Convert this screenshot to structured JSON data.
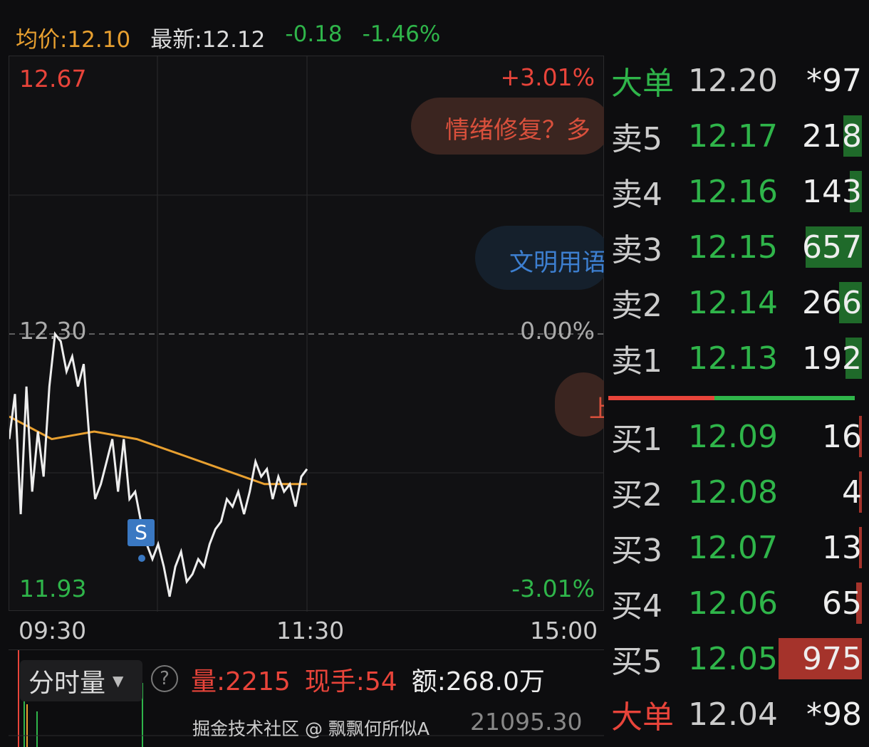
{
  "header": {
    "avg_label": "均价:12.10",
    "latest_label": "最新:12.12",
    "change": "-0.18",
    "change_pct": "-1.46%"
  },
  "colors": {
    "up": "#e8443a",
    "down": "#2fb54a",
    "avg_line": "#e8a030",
    "price_line": "#eeeeee",
    "background": "#0d0d0f"
  },
  "chart": {
    "y_high": "12.67",
    "y_mid": "12.30",
    "y_low": "11.93",
    "pct_high": "+3.01%",
    "pct_mid": "0.00%",
    "pct_low": "-3.01%",
    "x_ticks": [
      "09:30",
      "11:30",
      "15:00"
    ],
    "signal_marker": "S",
    "chart_data": {
      "type": "line",
      "ylim": [
        11.93,
        12.67
      ],
      "x_range": [
        "09:30",
        "15:00"
      ],
      "prev_close": 12.3,
      "series_span": [
        "09:30",
        "11:30"
      ],
      "price": [
        12.16,
        12.22,
        12.06,
        12.23,
        12.09,
        12.17,
        12.11,
        12.23,
        12.3,
        12.29,
        12.25,
        12.27,
        12.23,
        12.26,
        12.16,
        12.08,
        12.1,
        12.13,
        12.16,
        12.09,
        12.16,
        12.08,
        12.09,
        12.05,
        12.02,
        12.0,
        12.02,
        11.99,
        11.95,
        11.99,
        12.01,
        11.97,
        11.98,
        12.0,
        11.99,
        12.02,
        12.04,
        12.05,
        12.08,
        12.07,
        12.09,
        12.06,
        12.09,
        12.13,
        12.11,
        12.12,
        12.08,
        12.11,
        12.09,
        12.1,
        12.07,
        12.11,
        12.12
      ],
      "avg": [
        12.19,
        12.16,
        12.17,
        12.16,
        12.14,
        12.12,
        12.1,
        12.1
      ]
    }
  },
  "bubbles": [
    {
      "text": "情绪修复？多"
    },
    {
      "text": "文明用语"
    },
    {
      "text": "上"
    }
  ],
  "orderbook": {
    "big_top": {
      "label": "大单",
      "price": "12.20",
      "vol": "*97"
    },
    "asks": [
      {
        "label": "卖5",
        "price": "12.17",
        "vol": 218
      },
      {
        "label": "卖4",
        "price": "12.16",
        "vol": 143
      },
      {
        "label": "卖3",
        "price": "12.15",
        "vol": 657
      },
      {
        "label": "卖2",
        "price": "12.14",
        "vol": 266
      },
      {
        "label": "卖1",
        "price": "12.13",
        "vol": 192
      }
    ],
    "bids": [
      {
        "label": "买1",
        "price": "12.09",
        "vol": 16
      },
      {
        "label": "买2",
        "price": "12.08",
        "vol": 4
      },
      {
        "label": "买3",
        "price": "12.07",
        "vol": 13
      },
      {
        "label": "买4",
        "price": "12.06",
        "vol": 65
      },
      {
        "label": "买5",
        "price": "12.05",
        "vol": 975
      }
    ],
    "big_bottom": {
      "label": "大单",
      "price": "12.04",
      "vol": "*98"
    },
    "buy_sell_ratio": 0.43
  },
  "volume": {
    "selector": "分时量",
    "help": "?",
    "qty": "量:2215",
    "hand": "现手:54",
    "amount": "额:268.0万",
    "max": "21095.30"
  },
  "watermark": "掘金技术社区 @ 飘飘何所似A"
}
